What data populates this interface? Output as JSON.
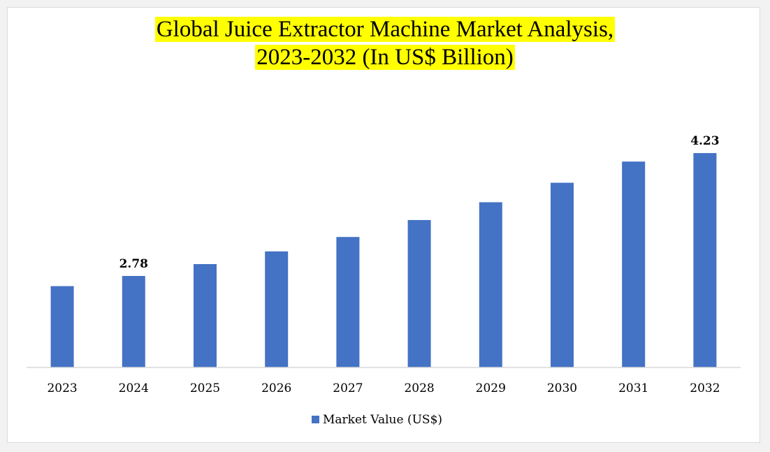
{
  "chart_data": {
    "type": "bar",
    "title_line1": "Global Juice Extractor Machine Market Analysis,",
    "title_line2": "2023-2032 (In US$ Billion)",
    "categories": [
      "2023",
      "2024",
      "2025",
      "2026",
      "2027",
      "2028",
      "2029",
      "2030",
      "2031",
      "2032"
    ],
    "series": [
      {
        "name": "Market Value (US$)",
        "color": "#4472c4",
        "values": [
          2.66,
          2.78,
          2.92,
          3.07,
          3.24,
          3.44,
          3.65,
          3.88,
          4.13,
          4.23
        ]
      }
    ],
    "data_labels": [
      {
        "category": "2024",
        "text": "2.78"
      },
      {
        "category": "2032",
        "text": "4.23"
      }
    ],
    "ylim": [
      1.7,
      4.8
    ],
    "grid": false,
    "legend_position": "bottom",
    "title_highlight": "#ffff00"
  }
}
